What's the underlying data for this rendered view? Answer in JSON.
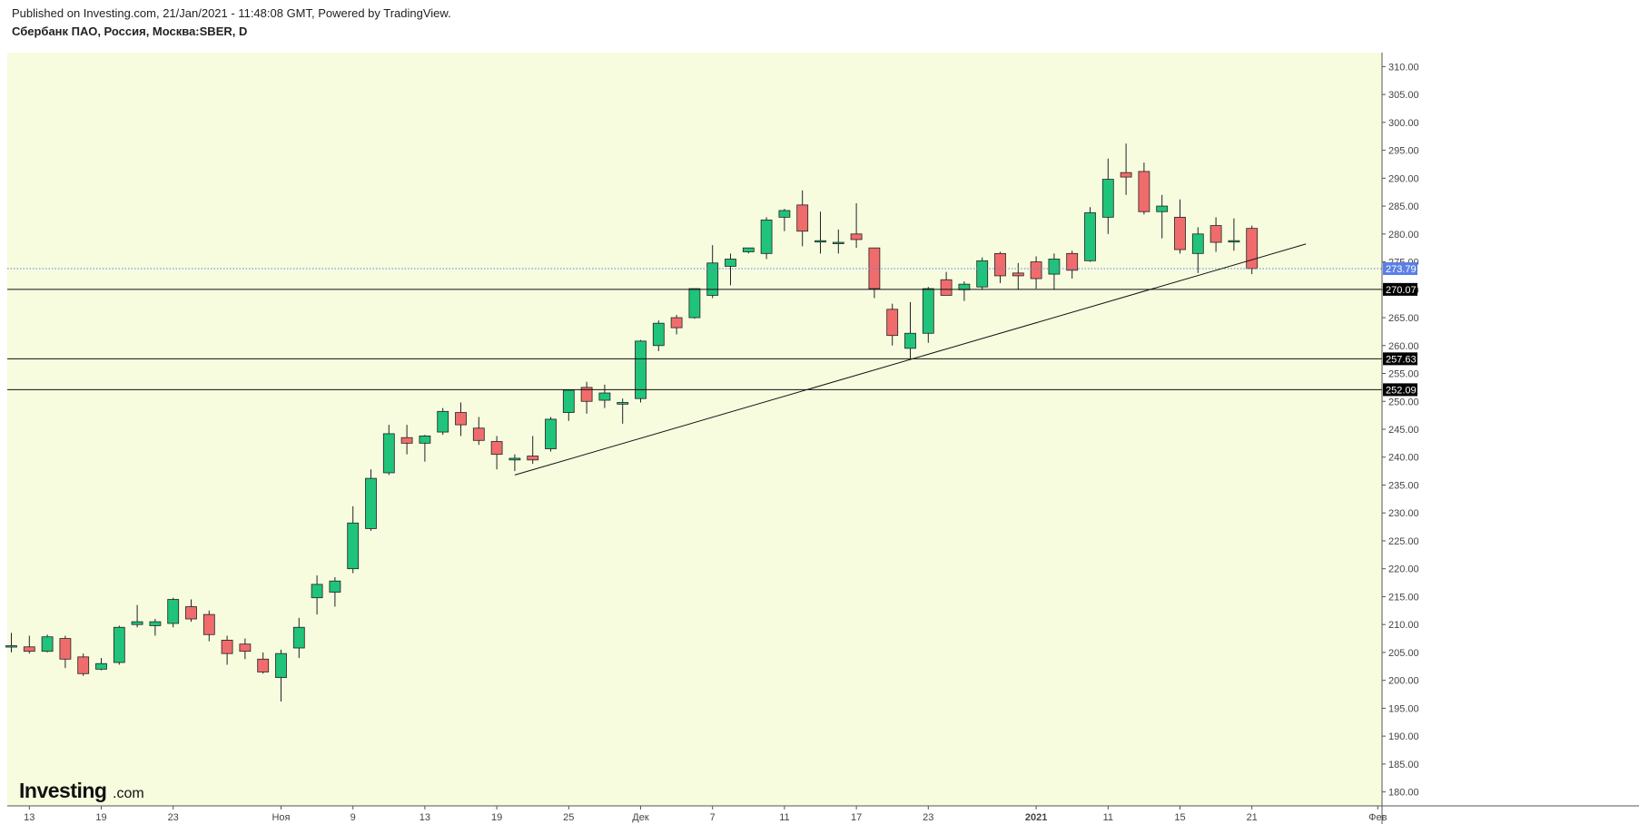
{
  "header": {
    "published": "Published on Investing.com, 21/Jan/2021 - 11:48:08 GMT, Powered by TradingView.",
    "symbol": "Сбербанк ПАО, Россия, Москва:SBER, D"
  },
  "logo": {
    "main": "Investing",
    "suffix": ".com"
  },
  "colors": {
    "background": "#f7fcdf",
    "up": "#20c37a",
    "down": "#f06c6c",
    "current_price_tag": "#5b7fe6",
    "level_tag": "#000000"
  },
  "chart_data": {
    "type": "candlestick",
    "ylim": [
      177.5,
      312.5
    ],
    "y_ticks": [
      "180.00",
      "185.00",
      "190.00",
      "195.00",
      "200.00",
      "205.00",
      "210.00",
      "215.00",
      "220.00",
      "225.00",
      "230.00",
      "235.00",
      "240.00",
      "245.00",
      "250.00",
      "255.00",
      "260.00",
      "265.00",
      "270.00",
      "275.00",
      "280.00",
      "285.00",
      "290.00",
      "295.00",
      "300.00",
      "305.00",
      "310.00"
    ],
    "x_ticks": [
      {
        "i": 1,
        "label": "13"
      },
      {
        "i": 5,
        "label": "19"
      },
      {
        "i": 9,
        "label": "23"
      },
      {
        "i": 15,
        "label": "Ноя"
      },
      {
        "i": 19,
        "label": "9"
      },
      {
        "i": 23,
        "label": "13"
      },
      {
        "i": 27,
        "label": "19"
      },
      {
        "i": 31,
        "label": "25"
      },
      {
        "i": 35,
        "label": "Дек"
      },
      {
        "i": 39,
        "label": "7"
      },
      {
        "i": 43,
        "label": "11"
      },
      {
        "i": 47,
        "label": "17"
      },
      {
        "i": 51,
        "label": "23"
      },
      {
        "i": 57,
        "label": "2021",
        "bold": true
      },
      {
        "i": 61,
        "label": "11"
      },
      {
        "i": 65,
        "label": "15"
      },
      {
        "i": 69,
        "label": "21"
      },
      {
        "i": 76,
        "label": "Фев"
      }
    ],
    "candles": [
      [
        206.0,
        208.5,
        205.0,
        206.2
      ],
      [
        206.0,
        208.0,
        204.8,
        205.2
      ],
      [
        205.2,
        208.2,
        205.0,
        207.8
      ],
      [
        207.5,
        208.0,
        202.2,
        203.8
      ],
      [
        204.2,
        204.8,
        200.8,
        201.2
      ],
      [
        202.0,
        204.0,
        201.8,
        203.0
      ],
      [
        203.2,
        209.8,
        202.8,
        209.5
      ],
      [
        210.0,
        213.5,
        209.5,
        210.5
      ],
      [
        209.8,
        211.0,
        208.0,
        210.5
      ],
      [
        210.2,
        214.8,
        209.5,
        214.5
      ],
      [
        213.2,
        214.5,
        210.5,
        211.0
      ],
      [
        211.8,
        212.5,
        207.0,
        208.2
      ],
      [
        207.2,
        208.0,
        202.8,
        204.8
      ],
      [
        206.5,
        207.5,
        203.8,
        205.2
      ],
      [
        203.8,
        205.0,
        201.2,
        201.5
      ],
      [
        200.5,
        205.5,
        196.2,
        204.8
      ],
      [
        205.8,
        211.2,
        204.0,
        209.5
      ],
      [
        214.8,
        218.8,
        211.8,
        217.2
      ],
      [
        215.8,
        218.5,
        213.2,
        217.8
      ],
      [
        220.0,
        231.2,
        219.2,
        228.2
      ],
      [
        227.2,
        237.8,
        226.8,
        236.2
      ],
      [
        237.2,
        245.8,
        236.8,
        244.2
      ],
      [
        243.5,
        245.8,
        240.5,
        242.5
      ],
      [
        242.5,
        244.0,
        239.2,
        243.8
      ],
      [
        244.5,
        248.8,
        244.0,
        248.2
      ],
      [
        248.0,
        249.8,
        243.8,
        245.8
      ],
      [
        245.2,
        247.2,
        242.2,
        243.0
      ],
      [
        242.8,
        243.8,
        237.8,
        240.5
      ],
      [
        239.5,
        240.5,
        237.5,
        239.8
      ],
      [
        240.2,
        243.8,
        238.8,
        239.5
      ],
      [
        241.5,
        247.2,
        241.0,
        246.8
      ],
      [
        248.0,
        252.0,
        246.5,
        252.0
      ],
      [
        252.5,
        253.5,
        247.8,
        250.0
      ],
      [
        250.2,
        253.0,
        248.8,
        251.5
      ],
      [
        249.5,
        250.5,
        246.0,
        249.8
      ],
      [
        250.5,
        261.0,
        249.8,
        260.8
      ],
      [
        260.0,
        264.5,
        259.0,
        264.0
      ],
      [
        265.0,
        265.5,
        262.0,
        263.2
      ],
      [
        265.0,
        270.2,
        264.8,
        270.2
      ],
      [
        269.0,
        278.0,
        268.5,
        274.8
      ],
      [
        274.2,
        276.5,
        270.8,
        275.5
      ],
      [
        276.8,
        277.5,
        276.5,
        277.5
      ],
      [
        276.5,
        283.0,
        275.5,
        282.5
      ],
      [
        283.0,
        284.5,
        280.5,
        284.2
      ],
      [
        285.2,
        287.8,
        277.8,
        280.5
      ],
      [
        278.8,
        284.0,
        276.5,
        278.8
      ],
      [
        278.5,
        280.8,
        276.5,
        278.5
      ],
      [
        280.0,
        285.5,
        277.5,
        279.0
      ],
      [
        277.5,
        277.5,
        268.5,
        270.2
      ],
      [
        266.5,
        267.5,
        260.0,
        261.8
      ],
      [
        259.5,
        267.8,
        257.6,
        262.2
      ],
      [
        262.2,
        270.5,
        260.5,
        270.2
      ],
      [
        271.8,
        273.2,
        269.5,
        269.0
      ],
      [
        270.0,
        271.5,
        268.0,
        271.0
      ],
      [
        270.5,
        275.8,
        270.0,
        275.2
      ],
      [
        276.5,
        276.8,
        271.2,
        272.5
      ],
      [
        273.0,
        274.8,
        270.0,
        272.5
      ],
      [
        275.0,
        276.0,
        270.2,
        272.0
      ],
      [
        272.8,
        276.5,
        270.0,
        275.5
      ],
      [
        276.5,
        277.0,
        272.0,
        273.5
      ],
      [
        275.2,
        284.8,
        275.0,
        283.8
      ],
      [
        283.0,
        293.5,
        280.0,
        289.8
      ],
      [
        291.0,
        296.2,
        287.0,
        290.2
      ],
      [
        291.2,
        292.8,
        283.5,
        284.0
      ],
      [
        284.0,
        287.0,
        279.2,
        285.0
      ],
      [
        283.0,
        286.2,
        276.5,
        277.2
      ],
      [
        276.5,
        281.2,
        273.0,
        280.0
      ],
      [
        281.5,
        283.0,
        276.8,
        278.5
      ],
      [
        278.8,
        282.8,
        277.0,
        278.8
      ],
      [
        281.0,
        281.5,
        272.8,
        273.8
      ]
    ],
    "trendline": [
      [
        28,
        236.8
      ],
      [
        72,
        278.2
      ]
    ],
    "horizontal_levels": [
      {
        "value": 270.07,
        "label": "270.07"
      },
      {
        "value": 257.63,
        "label": "257.63"
      },
      {
        "value": 252.09,
        "label": "252.09"
      }
    ],
    "current_price": {
      "value": 273.79,
      "label": "273.79"
    }
  }
}
